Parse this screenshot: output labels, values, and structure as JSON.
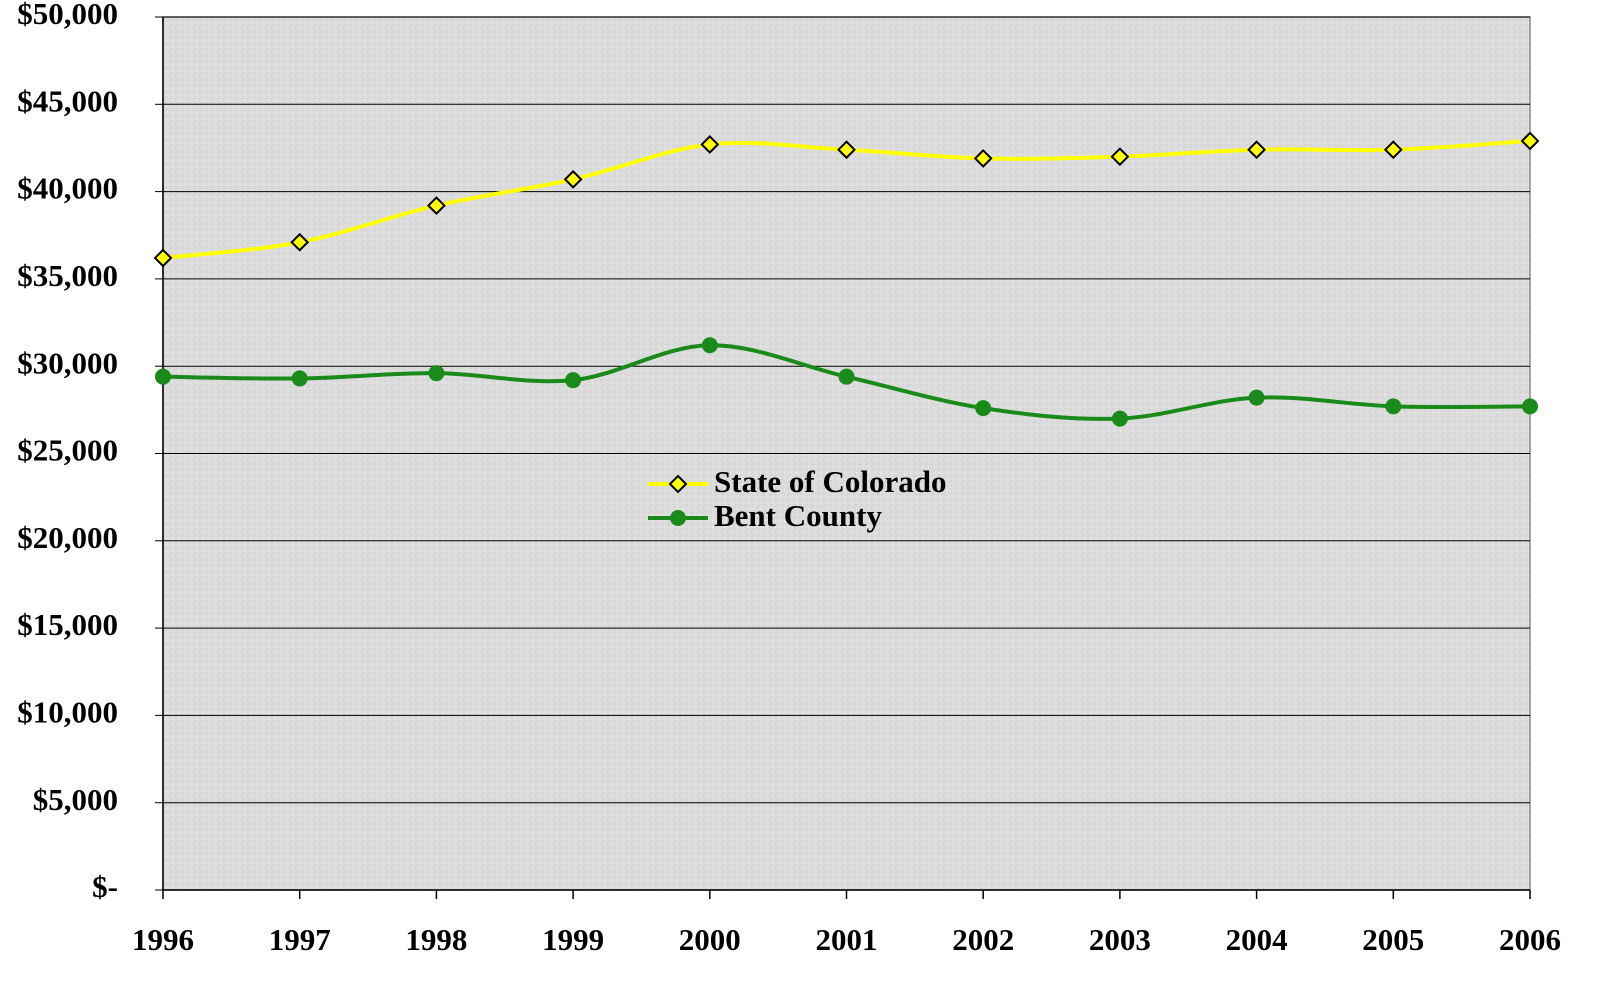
{
  "chart_data": {
    "type": "line",
    "x": [
      1996,
      1997,
      1998,
      1999,
      2000,
      2001,
      2002,
      2003,
      2004,
      2005,
      2006
    ],
    "xlim": [
      1996,
      2006
    ],
    "xticks": [
      1996,
      1997,
      1998,
      1999,
      2000,
      2001,
      2002,
      2003,
      2004,
      2005,
      2006
    ],
    "ylim": [
      0,
      50000
    ],
    "yticks": [
      {
        "value": 0,
        "label": "$-"
      },
      {
        "value": 5000,
        "label": "$5,000"
      },
      {
        "value": 10000,
        "label": "$10,000"
      },
      {
        "value": 15000,
        "label": "$15,000"
      },
      {
        "value": 20000,
        "label": "$20,000"
      },
      {
        "value": 25000,
        "label": "$25,000"
      },
      {
        "value": 30000,
        "label": "$30,000"
      },
      {
        "value": 35000,
        "label": "$35,000"
      },
      {
        "value": 40000,
        "label": "$40,000"
      },
      {
        "value": 45000,
        "label": "$45,000"
      },
      {
        "value": 50000,
        "label": "$50,000"
      }
    ],
    "grid": true,
    "legend": "center",
    "series": [
      {
        "name": "State of Colorado",
        "color": "#ffff00",
        "marker": "diamond",
        "values": [
          36200,
          37100,
          39200,
          40700,
          42700,
          42400,
          41900,
          42000,
          42400,
          42400,
          42900
        ]
      },
      {
        "name": "Bent County",
        "color": "#1a8a1a",
        "marker": "circle",
        "values": [
          29400,
          29300,
          29600,
          29200,
          31200,
          29400,
          27600,
          27000,
          28200,
          27700,
          27700
        ]
      }
    ]
  }
}
